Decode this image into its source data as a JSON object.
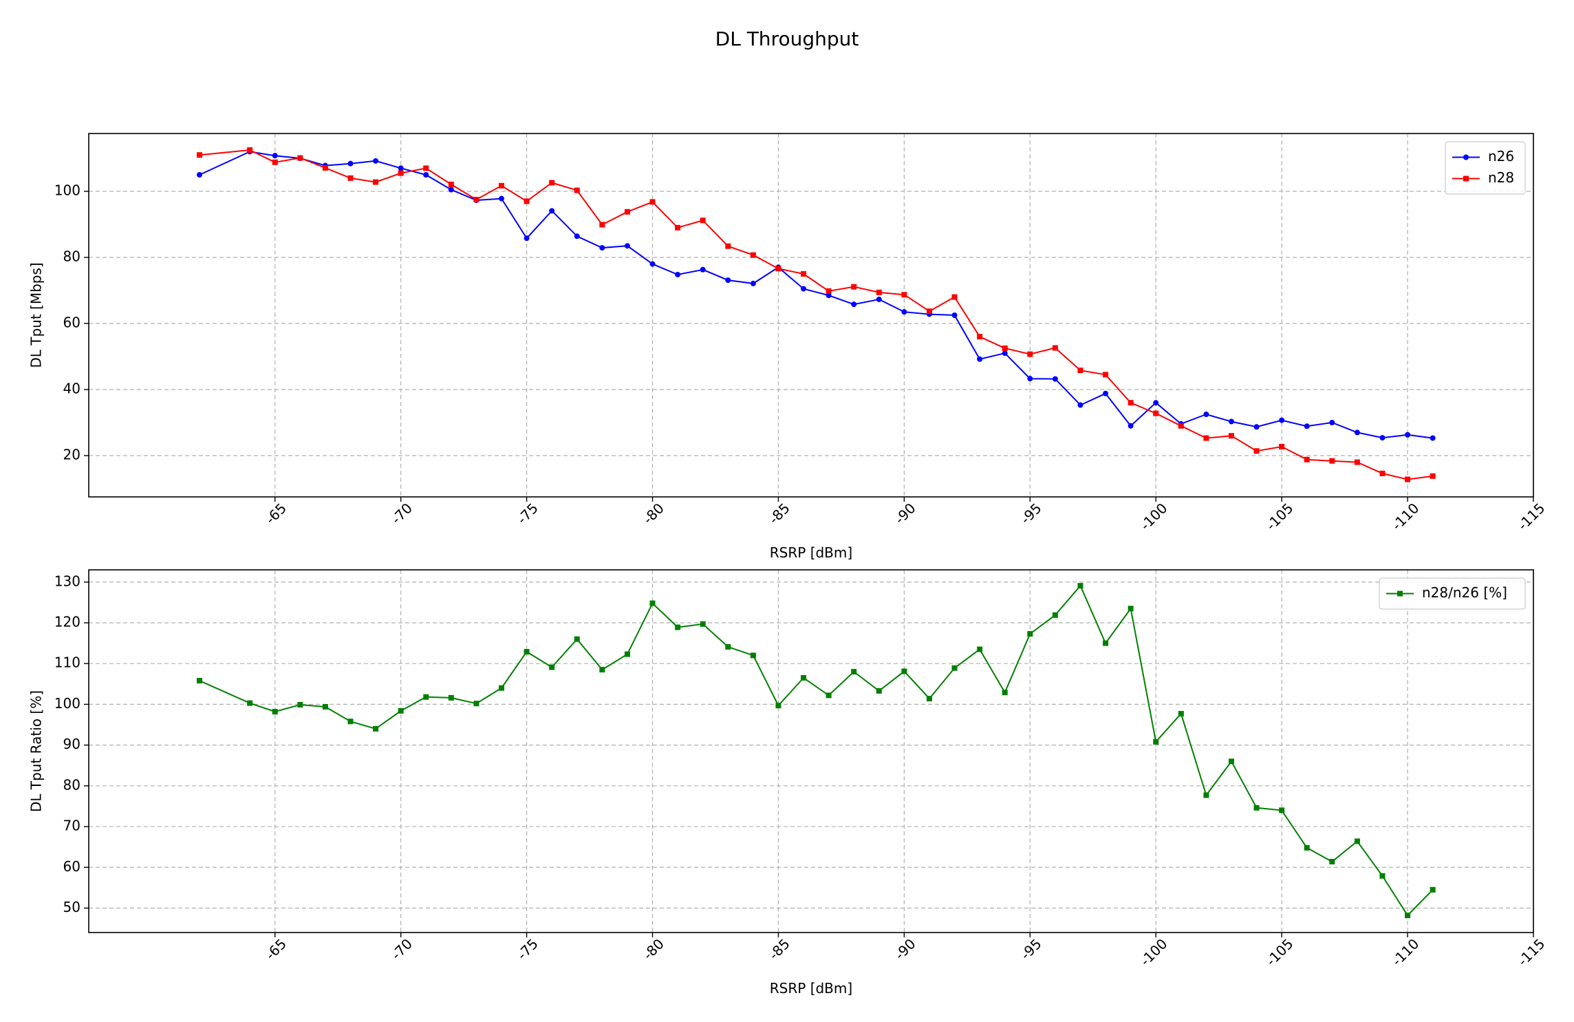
{
  "figure": {
    "title": "DL Throughput"
  },
  "chart_data": [
    {
      "type": "line",
      "xlabel": "RSRP [dBm]",
      "ylabel": "DL Tput [Mbps]",
      "xlim": [
        -57.6,
        -115
      ],
      "ylim": [
        7.5,
        117.5
      ],
      "xticks": [
        -65,
        -70,
        -75,
        -80,
        -85,
        -90,
        -95,
        -100,
        -105,
        -110,
        -115
      ],
      "yticks": [
        20,
        40,
        60,
        80,
        100
      ],
      "grid": true,
      "legend_position": "top-right",
      "x": [
        -62,
        -64,
        -65,
        -66,
        -67,
        -68,
        -69,
        -70,
        -71,
        -72,
        -73,
        -74,
        -75,
        -76,
        -77,
        -78,
        -79,
        -80,
        -81,
        -82,
        -83,
        -84,
        -85,
        -86,
        -87,
        -88,
        -89,
        -90,
        -91,
        -92,
        -93,
        -94,
        -95,
        -96,
        -97,
        -98,
        -99,
        -100,
        -101,
        -102,
        -103,
        -104,
        -105,
        -106,
        -107,
        -108,
        -109,
        -110,
        -111
      ],
      "series": [
        {
          "name": "n26",
          "color": "#0000ff",
          "marker": "circle",
          "values": [
            105,
            112,
            110.8,
            110,
            107.8,
            108.4,
            109.2,
            107,
            105,
            100.5,
            97.3,
            97.8,
            85.8,
            94.1,
            86.4,
            82.9,
            83.5,
            78,
            74.8,
            76.3,
            73.1,
            72.1,
            77,
            70.5,
            68.5,
            65.8,
            67.3,
            63.5,
            62.8,
            62.5,
            49.2,
            51,
            43.3,
            43.2,
            35.3,
            38.8,
            29,
            36,
            29.6,
            32.5,
            30.3,
            28.7,
            30.7,
            28.9,
            30,
            27,
            25.4,
            26.3,
            25.3
          ]
        },
        {
          "name": "n28",
          "color": "#ff0000",
          "marker": "square",
          "values": [
            111,
            112.5,
            108.8,
            110.1,
            107.1,
            104,
            102.8,
            105.5,
            107,
            102.1,
            97.5,
            101.7,
            97,
            102.6,
            100.3,
            89.9,
            93.8,
            96.8,
            89,
            91.2,
            83.4,
            80.7,
            76.6,
            75,
            69.8,
            71.1,
            69.4,
            68.7,
            63.7,
            68,
            56,
            52.5,
            50.7,
            52.6,
            45.8,
            44.5,
            36,
            32.8,
            29,
            25.3,
            26,
            21.4,
            22.7,
            18.8,
            18.4,
            18,
            14.6,
            12.8,
            13.8
          ]
        }
      ]
    },
    {
      "type": "line",
      "xlabel": "RSRP [dBm]",
      "ylabel": "DL Tput Ratio [%]",
      "xlim": [
        -57.6,
        -115
      ],
      "ylim": [
        44,
        133
      ],
      "xticks": [
        -65,
        -70,
        -75,
        -80,
        -85,
        -90,
        -95,
        -100,
        -105,
        -110,
        -115
      ],
      "yticks": [
        50,
        60,
        70,
        80,
        90,
        100,
        110,
        120,
        130
      ],
      "grid": true,
      "legend_position": "top-right",
      "x": [
        -62,
        -64,
        -65,
        -66,
        -67,
        -68,
        -69,
        -70,
        -71,
        -72,
        -73,
        -74,
        -75,
        -76,
        -77,
        -78,
        -79,
        -80,
        -81,
        -82,
        -83,
        -84,
        -85,
        -86,
        -87,
        -88,
        -89,
        -90,
        -91,
        -92,
        -93,
        -94,
        -95,
        -96,
        -97,
        -98,
        -99,
        -100,
        -101,
        -102,
        -103,
        -104,
        -105,
        -106,
        -107,
        -108,
        -109,
        -110,
        -111
      ],
      "series": [
        {
          "name": "n28/n26 [%]",
          "color": "#008000",
          "marker": "square",
          "values": [
            105.8,
            100.3,
            98.2,
            99.9,
            99.4,
            95.8,
            94,
            98.4,
            101.8,
            101.6,
            100.2,
            104,
            112.9,
            109.1,
            116,
            108.5,
            112.3,
            124.8,
            118.9,
            119.7,
            114.1,
            112,
            99.7,
            106.5,
            102.2,
            108,
            103.3,
            108.1,
            101.4,
            108.9,
            113.5,
            102.9,
            117.3,
            121.9,
            129.1,
            115,
            123.5,
            90.8,
            97.7,
            77.7,
            86,
            74.6,
            74,
            64.8,
            61.4,
            66.4,
            57.9,
            48.2,
            54.5
          ]
        }
      ]
    }
  ]
}
